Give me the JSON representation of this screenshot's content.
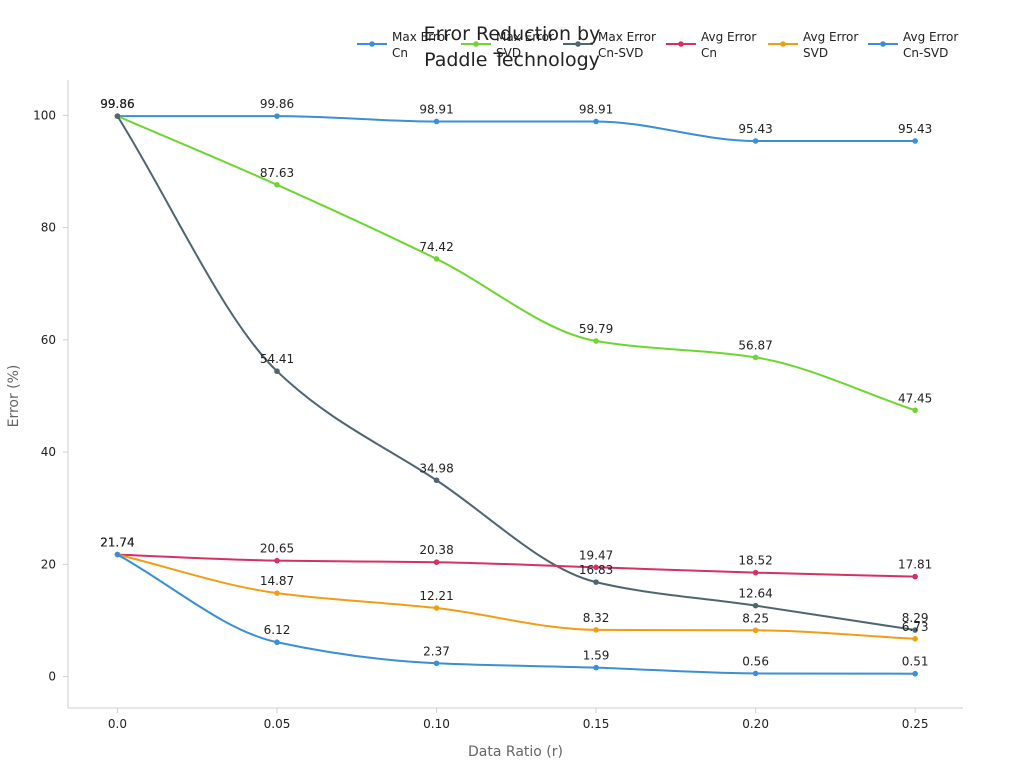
{
  "chart_data": {
    "type": "line",
    "title": [
      "Error Reduction by",
      "Paddle Technology"
    ],
    "xlabel": "Data Ratio (r)",
    "ylabel": "Error (%)",
    "x": [
      0.0,
      0.05,
      0.1,
      0.15,
      0.2,
      0.25
    ],
    "x_tick_labels": [
      "0.0",
      "0.05",
      "0.10",
      "0.15",
      "0.20",
      "0.25"
    ],
    "y_ticks": [
      0,
      20,
      40,
      60,
      80,
      100
    ],
    "xlim": [
      -0.0155,
      0.265
    ],
    "ylim": [
      -5.6,
      106.3
    ],
    "grid": false,
    "legend_position": "top-right",
    "series": [
      {
        "name": [
          "Max Error",
          "Cn"
        ],
        "color": "#3a8fd6",
        "values": [
          99.86,
          99.86,
          98.91,
          98.91,
          95.43,
          95.43
        ],
        "labels": [
          "99.86",
          "99.86",
          "98.91",
          "98.91",
          "95.43",
          "95.43"
        ]
      },
      {
        "name": [
          "Max Error",
          "SVD"
        ],
        "color": "#6dd630",
        "values": [
          99.86,
          87.63,
          74.42,
          59.79,
          56.87,
          47.45
        ],
        "labels": [
          "99.86",
          "87.63",
          "74.42",
          "59.79",
          "56.87",
          "47.45"
        ]
      },
      {
        "name": [
          "Max Error",
          "Cn-SVD"
        ],
        "color": "#4f6670",
        "values": [
          99.86,
          54.41,
          34.98,
          16.83,
          12.64,
          8.29
        ],
        "labels": [
          "99.86",
          "54.41",
          "34.98",
          "16.83",
          "12.64",
          "8.29"
        ]
      },
      {
        "name": [
          "Avg Error",
          "Cn"
        ],
        "color": "#d63063",
        "values": [
          21.74,
          20.65,
          20.38,
          19.47,
          18.52,
          17.81
        ],
        "labels": [
          "21.74",
          "20.65",
          "20.38",
          "19.47",
          "18.52",
          "17.81"
        ]
      },
      {
        "name": [
          "Avg Error",
          "SVD"
        ],
        "color": "#f29d13",
        "values": [
          21.74,
          14.87,
          12.21,
          8.32,
          8.25,
          6.73
        ],
        "labels": [
          "21.74",
          "14.87",
          "12.21",
          "8.32",
          "8.25",
          "6.73"
        ]
      },
      {
        "name": [
          "Avg Error",
          "Cn-SVD"
        ],
        "color": "#3a8fd6",
        "values": [
          21.74,
          6.12,
          2.37,
          1.59,
          0.56,
          0.51
        ],
        "labels": [
          "21.74",
          "6.12",
          "2.37",
          "1.59",
          "0.56",
          "0.51"
        ]
      }
    ]
  }
}
